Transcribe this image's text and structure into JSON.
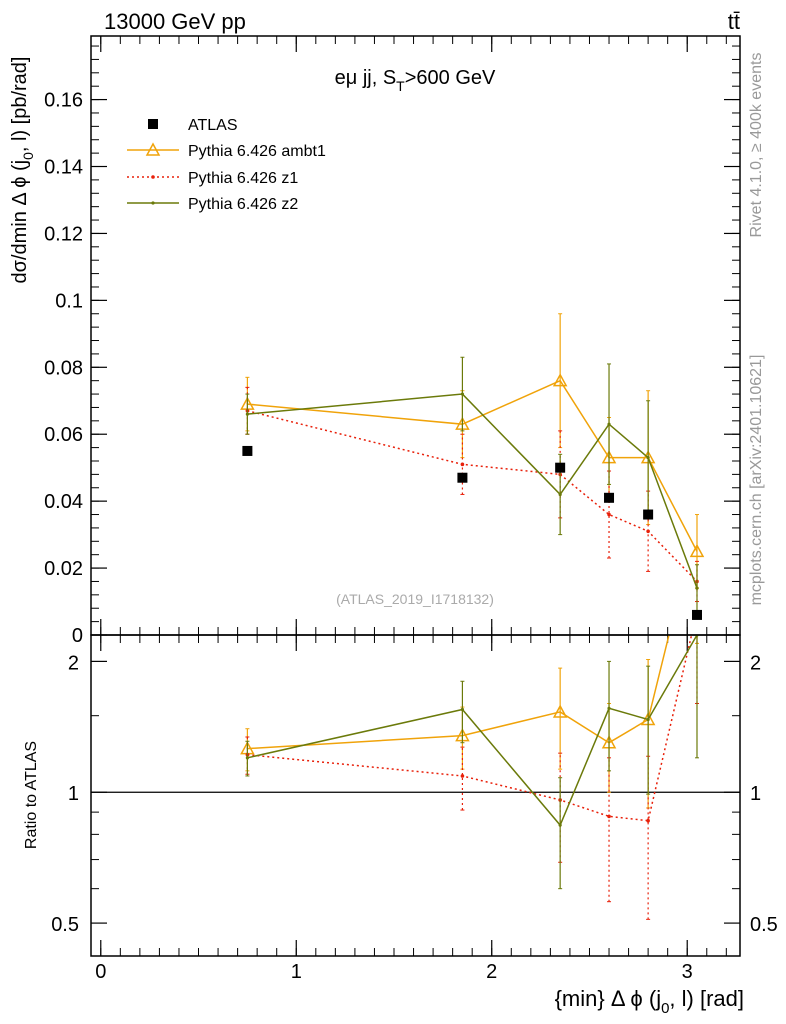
{
  "header": {
    "left": "13000 GeV pp",
    "right": "tt̄"
  },
  "side_labels": {
    "rivet": "Rivet 4.1.0, ≥ 400k events",
    "mcplots": "mcplots.cern.ch [arXiv:2401.10621]"
  },
  "colors": {
    "atlas": "#000000",
    "ambt1": "#f0a30a",
    "z1": "#e8200a",
    "z2": "#6b7a0a"
  },
  "chart_data": [
    {
      "type": "scatter",
      "panel": "main",
      "title": "eμ jj, S_T>600 GeV",
      "title_main": "eμ jj, S",
      "title_sub": "T",
      "title_tail": ">600 GeV",
      "ylabel": "dσ/dmin Δ ϕ (j_0, l) [pb/rad]",
      "ylabel_main": "dσ/dmin Δ ϕ (j",
      "ylabel_sub": "0",
      "ylabel_tail": ", l) [pb/rad]",
      "watermark": "(ATLAS_2019_I1718132)",
      "xlim": [
        -0.05,
        3.27
      ],
      "ylim": [
        0,
        0.179
      ],
      "yticks": [
        0,
        0.02,
        0.04,
        0.06,
        0.08,
        0.1,
        0.12,
        0.14,
        0.16
      ],
      "ytick_labels": [
        "0",
        "0.02",
        "0.04",
        "0.06",
        "0.08",
        "0.1",
        "0.12",
        "0.14",
        "0.16"
      ],
      "legend": [
        "ATLAS",
        "Pythia 6.426 ambt1",
        "Pythia 6.426 z1",
        "Pythia 6.426 z2"
      ],
      "legend_position": "top-left",
      "x": [
        0.75,
        1.85,
        2.35,
        2.6,
        2.8,
        3.05
      ],
      "series": [
        {
          "name": "ATLAS",
          "style": "data",
          "values": [
            0.055,
            0.047,
            0.05,
            0.041,
            0.036,
            0.006
          ]
        },
        {
          "name": "Pythia 6.426 ambt1",
          "style": "ambt1",
          "values": [
            0.069,
            0.063,
            0.076,
            0.053,
            0.053,
            0.025
          ],
          "err": [
            0.008,
            0.01,
            0.02,
            0.012,
            0.02,
            0.011
          ]
        },
        {
          "name": "Pythia 6.426 z1",
          "style": "z1",
          "values": [
            0.067,
            0.051,
            0.048,
            0.036,
            0.031,
            0.016
          ],
          "err": [
            0.007,
            0.009,
            0.013,
            0.013,
            0.012,
            0.006
          ]
        },
        {
          "name": "Pythia 6.426 z2",
          "style": "z2",
          "values": [
            0.066,
            0.072,
            0.042,
            0.063,
            0.053,
            0.014
          ],
          "err": [
            0.006,
            0.011,
            0.012,
            0.018,
            0.017,
            0.007
          ]
        }
      ]
    },
    {
      "type": "line",
      "panel": "ratio",
      "ylabel": "Ratio to ATLAS",
      "xlabel": "{min} Δ ϕ (j_0, l) [rad]",
      "xlabel_main": "{min} Δ ϕ (j",
      "xlabel_sub": "0",
      "xlabel_tail": ", l) [rad]",
      "xlim": [
        -0.05,
        3.27
      ],
      "ylim": [
        0.42,
        2.3
      ],
      "ylog": true,
      "yticks": [
        0.5,
        1,
        2
      ],
      "ytick_labels": [
        "0.5",
        "1",
        "2"
      ],
      "xticks": [
        0,
        1,
        2,
        3
      ],
      "xtick_labels": [
        "0",
        "1",
        "2",
        "3"
      ],
      "reference": 1,
      "x": [
        0.75,
        1.85,
        2.35,
        2.6,
        2.8,
        3.05
      ],
      "series": [
        {
          "name": "Pythia 6.426 ambt1",
          "style": "ambt1",
          "values": [
            1.26,
            1.35,
            1.53,
            1.3,
            1.47,
            4.2
          ],
          "err": [
            0.14,
            0.22,
            0.4,
            0.3,
            0.55,
            2.0
          ]
        },
        {
          "name": "Pythia 6.426 z1",
          "style": "z1",
          "values": [
            1.22,
            1.09,
            0.96,
            0.88,
            0.86,
            2.6
          ],
          "err": [
            0.12,
            0.18,
            0.27,
            0.32,
            0.35,
            1.0
          ]
        },
        {
          "name": "Pythia 6.426 z2",
          "style": "z2",
          "values": [
            1.2,
            1.55,
            0.84,
            1.56,
            1.47,
            2.3
          ],
          "err": [
            0.11,
            0.25,
            0.24,
            0.44,
            0.48,
            1.1
          ]
        }
      ]
    }
  ]
}
